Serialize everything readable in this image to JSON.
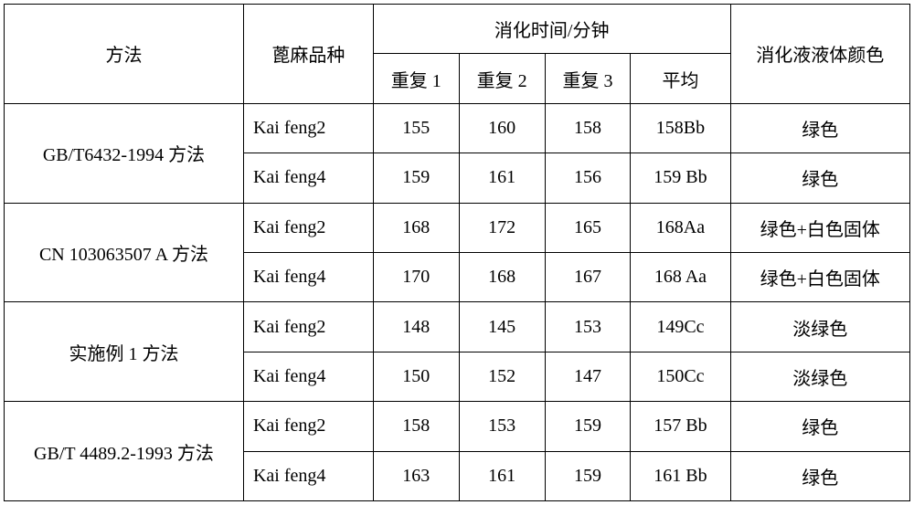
{
  "headers": {
    "method": "方法",
    "variety": "蓖麻品种",
    "digest_time": "消化时间/分钟",
    "rep1": "重复 1",
    "rep2": "重复 2",
    "rep3": "重复 3",
    "avg": "平均",
    "color": "消化液液体颜色"
  },
  "groups": [
    {
      "method": "GB/T6432-1994  方法",
      "rows": [
        {
          "variety": "Kai feng2",
          "r1": "155",
          "r2": "160",
          "r3": "158",
          "avg": "158Bb",
          "color": "绿色"
        },
        {
          "variety": "Kai feng4",
          "r1": "159",
          "r2": "161",
          "r3": "156",
          "avg": "159 Bb",
          "color": "绿色"
        }
      ]
    },
    {
      "method": "CN 103063507 A  方法",
      "rows": [
        {
          "variety": "Kai feng2",
          "r1": "168",
          "r2": "172",
          "r3": "165",
          "avg": "168Aa",
          "color": "绿色+白色固体"
        },
        {
          "variety": "Kai feng4",
          "r1": "170",
          "r2": "168",
          "r3": "167",
          "avg": "168 Aa",
          "color": "绿色+白色固体"
        }
      ]
    },
    {
      "method": "实施例 1  方法",
      "rows": [
        {
          "variety": "Kai feng2",
          "r1": "148",
          "r2": "145",
          "r3": "153",
          "avg": "149Cc",
          "color": "淡绿色"
        },
        {
          "variety": "Kai feng4",
          "r1": "150",
          "r2": "152",
          "r3": "147",
          "avg": "150Cc",
          "color": "淡绿色"
        }
      ]
    },
    {
      "method": "GB/T 4489.2-1993  方法",
      "rows": [
        {
          "variety": "Kai feng2",
          "r1": "158",
          "r2": "153",
          "r3": "159",
          "avg": "157 Bb",
          "color": "绿色"
        },
        {
          "variety": "Kai feng4",
          "r1": "163",
          "r2": "161",
          "r3": "159",
          "avg": "161 Bb",
          "color": "绿色"
        }
      ]
    }
  ],
  "style": {
    "border_color": "#000000",
    "background_color": "#ffffff",
    "text_color": "#000000",
    "font_size_pt": 15,
    "font_family": "SimSun"
  }
}
